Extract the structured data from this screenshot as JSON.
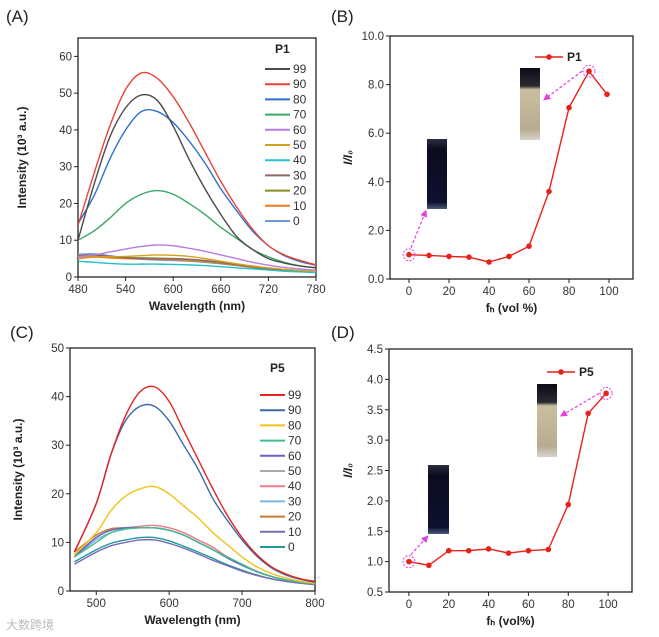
{
  "watermark": "大数跨境",
  "chart_data": [
    {
      "panel": "(A)",
      "type": "line",
      "xlabel": "Wavelength (nm)",
      "ylabel": "Intensity (10³ a.u.)",
      "xlim": [
        480,
        780
      ],
      "ylim": [
        0,
        65
      ],
      "xticks": [
        "480",
        "540",
        "600",
        "660",
        "720",
        "780"
      ],
      "yticks": [
        "0",
        "10",
        "20",
        "30",
        "40",
        "50",
        "60"
      ],
      "legend_title": "P1",
      "legend_placement": "top-right",
      "x": [
        480,
        500,
        520,
        540,
        560,
        580,
        600,
        620,
        640,
        660,
        680,
        700,
        720,
        740,
        760,
        780
      ],
      "series": [
        {
          "name": "99",
          "color": "#4a4a4a",
          "values": [
            10,
            25,
            38,
            46,
            49.5,
            48,
            41,
            32,
            24,
            17,
            11,
            7.5,
            5,
            3.8,
            3,
            2.5
          ]
        },
        {
          "name": "90",
          "color": "#e8433a",
          "values": [
            14,
            28,
            41,
            51,
            55.5,
            54,
            49,
            42,
            34,
            26,
            19,
            13,
            8.5,
            6,
            4.5,
            3.3
          ]
        },
        {
          "name": "80",
          "color": "#2f6fcf",
          "values": [
            14.5,
            22,
            32,
            40,
            45,
            45,
            42,
            37,
            31,
            24,
            18,
            12.5,
            8.5,
            5.8,
            4.2,
            3.2
          ]
        },
        {
          "name": "70",
          "color": "#3aa86b",
          "values": [
            10,
            12.5,
            16,
            20,
            22.5,
            23.5,
            22.5,
            20,
            17,
            13.5,
            10.5,
            7.5,
            5.5,
            4,
            3,
            2.5
          ]
        },
        {
          "name": "60",
          "color": "#b77ee0",
          "values": [
            5.5,
            6,
            6.8,
            7.6,
            8.3,
            8.7,
            8.5,
            7.8,
            7,
            6,
            5,
            4,
            3.2,
            2.6,
            2.2,
            1.8
          ]
        },
        {
          "name": "50",
          "color": "#d2a21c",
          "values": [
            5.5,
            5.5,
            5.5,
            5.6,
            5.8,
            6,
            5.9,
            5.6,
            5,
            4.3,
            3.6,
            3,
            2.5,
            2.1,
            1.8,
            1.5
          ]
        },
        {
          "name": "40",
          "color": "#23c1c9",
          "values": [
            4.3,
            4,
            3.7,
            3.5,
            3.5,
            3.5,
            3.4,
            3.3,
            3.1,
            2.8,
            2.5,
            2.2,
            1.9,
            1.6,
            1.4,
            1.2
          ]
        },
        {
          "name": "30",
          "color": "#8b6a6a",
          "values": [
            5.8,
            6,
            5.6,
            5.2,
            5,
            5,
            5,
            4.8,
            4.5,
            4,
            3.4,
            2.8,
            2.3,
            1.9,
            1.6,
            1.4
          ]
        },
        {
          "name": "20",
          "color": "#8a8a22",
          "values": [
            5.5,
            5.8,
            5.5,
            5.3,
            5.2,
            5.1,
            5,
            4.8,
            4.4,
            3.9,
            3.3,
            2.7,
            2.2,
            1.8,
            1.5,
            1.3
          ]
        },
        {
          "name": "10",
          "color": "#f07a1e",
          "values": [
            5,
            5.4,
            5.2,
            5,
            4.9,
            4.8,
            4.7,
            4.5,
            4.2,
            3.7,
            3.2,
            2.6,
            2.1,
            1.8,
            1.5,
            1.3
          ]
        },
        {
          "name": "0",
          "color": "#6c9bd0",
          "values": [
            6.2,
            6.3,
            5.8,
            5.2,
            4.8,
            4.6,
            4.5,
            4.3,
            4,
            3.6,
            3.1,
            2.6,
            2.1,
            1.8,
            1.5,
            1.3
          ]
        }
      ]
    },
    {
      "panel": "(B)",
      "type": "line",
      "xlabel": "fₕ (vol %)",
      "ylabel": "I/I₀",
      "xlim": [
        -9.5,
        112
      ],
      "ylim": [
        0,
        10
      ],
      "xticks": [
        "0",
        "20",
        "40",
        "60",
        "80",
        "100"
      ],
      "yticks": [
        "0.0",
        "2.0",
        "4.0",
        "6.0",
        "8.0",
        "10.0"
      ],
      "legend_placement": "top-right",
      "x": [
        0,
        10,
        20,
        30,
        40,
        50,
        60,
        70,
        80,
        90,
        99
      ],
      "series": [
        {
          "name": "P1",
          "color": "#e8211b",
          "values": [
            1.0,
            0.97,
            0.93,
            0.9,
            0.7,
            0.93,
            1.35,
            3.6,
            7.05,
            8.55,
            7.6
          ]
        }
      ],
      "highlight_x": [
        0,
        90
      ]
    },
    {
      "panel": "(C)",
      "type": "line",
      "xlabel": "Wavelength (nm)",
      "ylabel": "Intensity (10³ a.u.)",
      "xlim": [
        464,
        800
      ],
      "ylim": [
        0,
        50
      ],
      "xticks": [
        "500",
        "600",
        "700",
        "800"
      ],
      "yticks": [
        "0",
        "10",
        "20",
        "30",
        "40",
        "50"
      ],
      "legend_title": "P5",
      "legend_placement": "top-right",
      "x": [
        470,
        500,
        520,
        540,
        560,
        580,
        600,
        620,
        640,
        660,
        680,
        700,
        720,
        740,
        760,
        780,
        800
      ],
      "series": [
        {
          "name": "99",
          "color": "#e52222",
          "values": [
            8,
            18,
            28,
            36,
            41,
            42,
            39,
            33,
            27,
            21,
            15.5,
            11,
            7.5,
            5,
            3.5,
            2.5,
            2
          ]
        },
        {
          "name": "90",
          "color": "#3b6aa8",
          "values": [
            8,
            18,
            28,
            35,
            38,
            38,
            35,
            30,
            25,
            19,
            14.5,
            10.5,
            7.2,
            4.8,
            3.3,
            2.4,
            1.8
          ]
        },
        {
          "name": "80",
          "color": "#f2c21a",
          "values": [
            7.5,
            12,
            16.5,
            19.5,
            21,
            21.5,
            20,
            17.5,
            15,
            12,
            9.5,
            7,
            5,
            3.6,
            2.7,
            2,
            1.6
          ]
        },
        {
          "name": "70",
          "color": "#3fc08a",
          "values": [
            7,
            10,
            12,
            12.8,
            13,
            13,
            12.5,
            11.5,
            10,
            8.5,
            7,
            5.5,
            4,
            3,
            2.3,
            1.8,
            1.5
          ]
        },
        {
          "name": "60",
          "color": "#6a5ec0",
          "values": [
            7,
            11,
            12.5,
            13,
            13,
            13,
            12.5,
            11.5,
            10,
            8.5,
            6.8,
            5.3,
            4,
            3,
            2.3,
            1.8,
            1.5
          ]
        },
        {
          "name": "50",
          "color": "#a9a9a9",
          "values": [
            7.5,
            11,
            12.5,
            13,
            13,
            13,
            12.5,
            11.5,
            10,
            8.5,
            6.8,
            5.3,
            4,
            3,
            2.3,
            1.8,
            1.5
          ]
        },
        {
          "name": "40",
          "color": "#f07a86",
          "values": [
            7.5,
            11,
            12.5,
            13,
            13.3,
            13.5,
            13,
            12,
            10.5,
            9,
            7,
            5.5,
            4.1,
            3,
            2.3,
            1.8,
            1.5
          ]
        },
        {
          "name": "30",
          "color": "#7ab8e8",
          "values": [
            7,
            10.5,
            12,
            12.7,
            13,
            13,
            12.5,
            11.5,
            10,
            8.5,
            6.8,
            5.3,
            4,
            3,
            2.3,
            1.8,
            1.5
          ]
        },
        {
          "name": "20",
          "color": "#c87a35",
          "values": [
            8,
            11.5,
            12.8,
            13,
            13,
            13,
            12.5,
            11.5,
            10,
            8.5,
            6.8,
            5.3,
            4,
            3,
            2.3,
            1.8,
            1.5
          ]
        },
        {
          "name": "10",
          "color": "#7a68b8",
          "values": [
            5.5,
            8,
            9.3,
            10,
            10.5,
            10.5,
            9.8,
            8.8,
            7.6,
            6.3,
            5.2,
            4.1,
            3.2,
            2.5,
            2,
            1.6,
            1.3
          ]
        },
        {
          "name": "0",
          "color": "#1f9a9a",
          "values": [
            6,
            8.5,
            9.8,
            10.5,
            11,
            11,
            10.3,
            9.2,
            8,
            6.7,
            5.4,
            4.3,
            3.3,
            2.5,
            2,
            1.6,
            1.4
          ]
        }
      ]
    },
    {
      "panel": "(D)",
      "type": "line",
      "xlabel": "fₕ (vol%)",
      "ylabel": "I/I₀",
      "xlim": [
        -10,
        112
      ],
      "ylim": [
        0.5,
        4.5
      ],
      "xticks": [
        "0",
        "20",
        "40",
        "60",
        "80",
        "100"
      ],
      "yticks": [
        "0.5",
        "1.0",
        "1.5",
        "2.0",
        "2.5",
        "3.0",
        "3.5",
        "4.0",
        "4.5"
      ],
      "legend_placement": "top-right",
      "x": [
        0,
        10,
        20,
        30,
        40,
        50,
        60,
        70,
        80,
        90,
        99
      ],
      "series": [
        {
          "name": "P5",
          "color": "#e8211b",
          "values": [
            1.0,
            0.94,
            1.18,
            1.18,
            1.21,
            1.14,
            1.18,
            1.2,
            1.94,
            3.44,
            3.77
          ]
        }
      ],
      "highlight_x": [
        0,
        99
      ]
    }
  ]
}
